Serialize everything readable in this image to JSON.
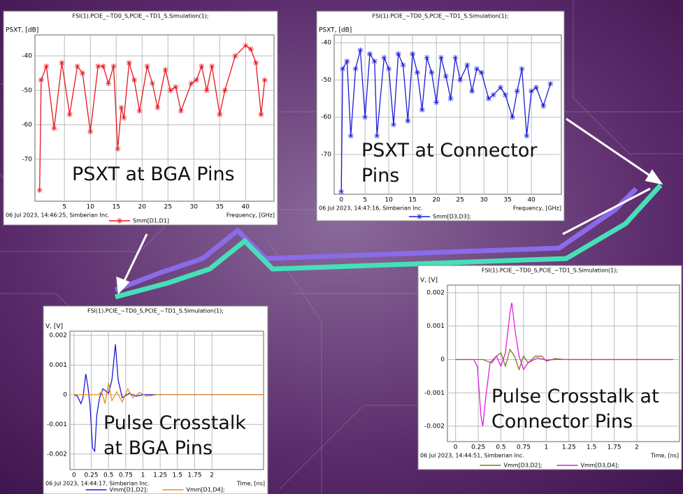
{
  "chart_data": [
    {
      "type": "line",
      "title": "FSI(1).PCIE_~TD0_S,PCIE_~TD1_S.Simulation(1);",
      "ylabel": "PSXT, [dB]",
      "xlabel": "Frequency, [GHz]",
      "footer": "06 Jul 2023, 14:46:25, Simberian Inc.",
      "annotation": "PSXT at BGA Pins",
      "xlim": [
        -0.7,
        45.5
      ],
      "ylim": [
        -82.2,
        -33.9
      ],
      "xticks": [
        5,
        10,
        15,
        20,
        25,
        30,
        35,
        40
      ],
      "yticks": [
        -40,
        -50,
        -60,
        -70
      ],
      "grid": true,
      "series": [
        {
          "name": "Smm[D1,D1]",
          "color": "#e8141c",
          "marker": "star",
          "x": [
            0.2,
            0.5,
            1.5,
            3,
            4.5,
            6,
            7.5,
            8.5,
            10,
            11.5,
            12.5,
            13.5,
            14.5,
            15.3,
            16,
            16.5,
            17.5,
            18.5,
            19.5,
            21,
            22,
            23,
            24.5,
            25.5,
            26.5,
            27.5,
            29.5,
            30.5,
            31.5,
            32.5,
            33.5,
            35,
            36,
            38,
            40,
            41,
            42,
            43,
            43.7
          ],
          "values": [
            -79,
            -47,
            -43,
            -61,
            -42,
            -57,
            -43,
            -45,
            -62,
            -43,
            -43,
            -48,
            -43,
            -67,
            -55,
            -58,
            -42,
            -47,
            -56,
            -43,
            -48,
            -55,
            -44,
            -50,
            -49,
            -56,
            -48,
            -47,
            -43,
            -50,
            -43,
            -57,
            -50,
            -40,
            -37,
            -38,
            -42,
            -57,
            -47
          ]
        }
      ]
    },
    {
      "type": "line",
      "title": "FSI(1).PCIE_~TD0_S,PCIE_~TD1_S.Simulation(1);",
      "ylabel": "PSXT, [dB]",
      "xlabel": "Frequency, [GHz]",
      "footer": "06 Jul 2023, 14:47:16, Simberian Inc.",
      "annotation": "PSXT at Connector Pins",
      "xlim": [
        -1.5,
        46.3
      ],
      "ylim": [
        -80.7,
        -37.9
      ],
      "xticks": [
        0,
        5,
        10,
        15,
        20,
        25,
        30,
        35,
        40
      ],
      "yticks": [
        -40,
        -50,
        -60,
        -70
      ],
      "grid": true,
      "series": [
        {
          "name": "Smm[D3,D3];",
          "color": "#1a1adb",
          "marker": "star",
          "x": [
            0,
            0.3,
            1.2,
            2,
            3,
            4,
            5,
            6,
            7,
            7.5,
            9,
            10,
            11,
            12,
            13,
            14,
            15,
            16,
            17,
            18,
            19,
            20,
            21,
            22,
            23,
            24,
            25,
            26.5,
            27.5,
            28.5,
            29.5,
            31,
            32,
            33.5,
            34.5,
            36,
            37,
            38,
            39,
            40,
            41,
            42.5,
            44
          ],
          "values": [
            -80,
            -47,
            -45,
            -65,
            -47,
            -42,
            -60,
            -43,
            -45,
            -65,
            -44,
            -47,
            -62,
            -43,
            -46,
            -61,
            -43,
            -48,
            -58,
            -44,
            -48,
            -56,
            -44,
            -49,
            -55,
            -44,
            -50,
            -46,
            -53,
            -47,
            -48,
            -55,
            -54,
            -52,
            -54,
            -60,
            -53,
            -47,
            -65,
            -53,
            -52,
            -57,
            -51
          ]
        }
      ]
    },
    {
      "type": "line",
      "title": "FSI(1).PCIE_~TD0_S,PCIE_~TD1_S.Simulation(1);",
      "ylabel": "V, [V]",
      "xlabel": "Time, [ns]",
      "footer": "06 Jul 2023, 14:44:17, Simberian Inc.",
      "annotation": "Pulse Crosstalk at BGA Pins",
      "xlim": [
        -0.06,
        2.75
      ],
      "ylim": [
        -0.00252,
        0.00214
      ],
      "xticks": [
        0,
        0.25,
        0.5,
        0.75,
        1,
        1.25,
        1.5,
        1.75,
        2
      ],
      "yticks": [
        0.002,
        0.001,
        0,
        -0.001,
        -0.002
      ],
      "grid": true,
      "series": [
        {
          "name": "Vmm[D1,D2];",
          "color": "#1a1adb",
          "x": [
            0,
            0.05,
            0.1,
            0.13,
            0.17,
            0.2,
            0.23,
            0.27,
            0.3,
            0.33,
            0.37,
            0.42,
            0.5,
            0.55,
            0.6,
            0.64,
            0.7,
            0.8,
            0.9,
            1.0,
            2.75
          ],
          "values": [
            0,
            -5e-05,
            -0.0003,
            -0.0001,
            0.0007,
            0.0003,
            -0.0003,
            -0.0018,
            -0.0019,
            -0.0007,
            -0.0001,
            0.0002,
            5e-05,
            0.0005,
            0.0017,
            0.0005,
            -0.0001,
            5e-05,
            -5e-05,
            0,
            0
          ]
        },
        {
          "name": "Vmm[D1,D4];",
          "color": "#f08c1a",
          "x": [
            0,
            0.35,
            0.4,
            0.45,
            0.5,
            0.55,
            0.62,
            0.7,
            0.78,
            0.85,
            0.95,
            1.05,
            1.2,
            2.75
          ],
          "values": [
            0,
            0,
            0.0001,
            -0.0003,
            0.0004,
            -0.0002,
            0.0001,
            -0.00025,
            0.0002,
            -0.0001,
            8e-05,
            -5e-05,
            0,
            0
          ]
        }
      ]
    },
    {
      "type": "line",
      "title": "FSI(1).PCIE_~TD0_S,PCIE_~TD1_S.Simulation(1);",
      "ylabel": "V, [V]",
      "xlabel": "Time, [ns]",
      "footer": "06 Jul 2023, 14:44:51, Simberian Inc.",
      "annotation": "Pulse Crosstalk at Connector Pins",
      "xlim": [
        -0.09,
        2.47
      ],
      "ylim": [
        -0.00246,
        0.00223
      ],
      "xticks": [
        0,
        0.25,
        0.5,
        0.75,
        1,
        1.25,
        1.5,
        1.75,
        2
      ],
      "yticks": [
        0.002,
        0.001,
        0,
        -0.001,
        -0.002
      ],
      "grid": true,
      "series": [
        {
          "name": "Vmm[D3,D2];",
          "color": "#7a7a1a",
          "x": [
            0,
            0.3,
            0.4,
            0.45,
            0.5,
            0.55,
            0.6,
            0.65,
            0.7,
            0.75,
            0.8,
            0.88,
            0.95,
            1.0,
            1.1,
            1.2,
            2.4
          ],
          "values": [
            0,
            0,
            -0.0001,
            0.0001,
            0.0002,
            -0.0002,
            0.0003,
            0.0001,
            -0.0003,
            0.0001,
            -0.0001,
            0.0001,
            0.0001,
            -5e-05,
            3e-05,
            0,
            0
          ]
        },
        {
          "name": "Vmm[D3,D4];",
          "color": "#e01ee0",
          "x": [
            0,
            0.2,
            0.24,
            0.28,
            0.3,
            0.33,
            0.38,
            0.45,
            0.5,
            0.55,
            0.6,
            0.62,
            0.66,
            0.7,
            0.75,
            0.8,
            0.9,
            1.0,
            1.1,
            2.4
          ],
          "values": [
            0,
            0,
            -0.0002,
            -0.0017,
            -0.002,
            -0.0012,
            -0.0001,
            0.0001,
            -0.0002,
            0.0002,
            0.0014,
            0.0017,
            0.0008,
            0.0001,
            -0.0003,
            -0.0001,
            5e-05,
            -2e-05,
            0,
            0
          ]
        }
      ]
    }
  ]
}
